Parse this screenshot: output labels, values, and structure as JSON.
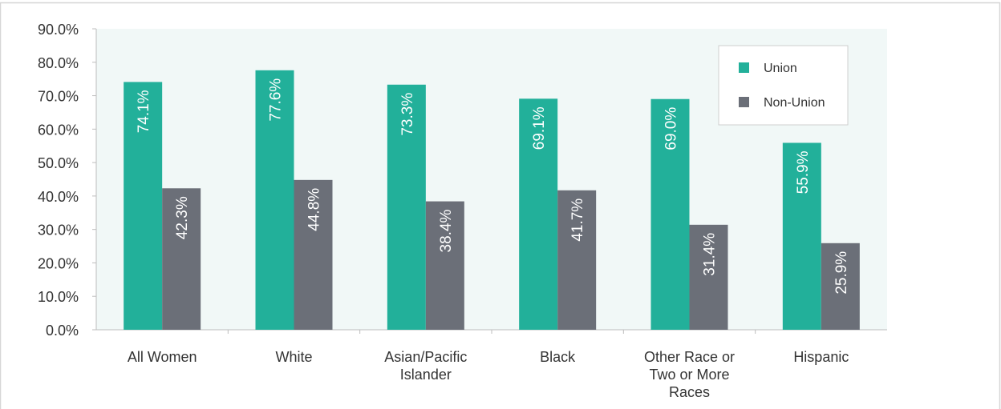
{
  "chart_data": {
    "type": "bar",
    "title": "",
    "xlabel": "",
    "ylabel": "",
    "ylim": [
      0,
      90
    ],
    "y_ticks": [
      0,
      10,
      20,
      30,
      40,
      50,
      60,
      70,
      80,
      90
    ],
    "y_tick_labels": [
      "0.0%",
      "10.0%",
      "20.0%",
      "30.0%",
      "40.0%",
      "50.0%",
      "60.0%",
      "70.0%",
      "80.0%",
      "90.0%"
    ],
    "categories": [
      [
        "All Women"
      ],
      [
        "White"
      ],
      [
        "Asian/Pacific",
        "Islander"
      ],
      [
        "Black"
      ],
      [
        "Other Race or",
        "Two or More",
        "Races"
      ],
      [
        "Hispanic"
      ]
    ],
    "series": [
      {
        "name": "Union",
        "color": "#22b09a",
        "values": [
          74.1,
          77.6,
          73.3,
          69.1,
          69.0,
          55.9
        ],
        "labels": [
          "74.1%",
          "77.6%",
          "73.3%",
          "69.1%",
          "69.0%",
          "55.9%"
        ]
      },
      {
        "name": "Non-Union",
        "color": "#6b6f78",
        "values": [
          42.3,
          44.8,
          38.4,
          41.7,
          31.4,
          25.9
        ],
        "labels": [
          "42.3%",
          "44.8%",
          "38.4%",
          "41.7%",
          "31.4%",
          "25.9%"
        ]
      }
    ],
    "legend": {
      "position": "top-right"
    },
    "grid": false,
    "colors": {
      "plot_background": "#f1f8f7",
      "frame": "#d6d6d6",
      "axis": "#bdbdbd"
    }
  }
}
